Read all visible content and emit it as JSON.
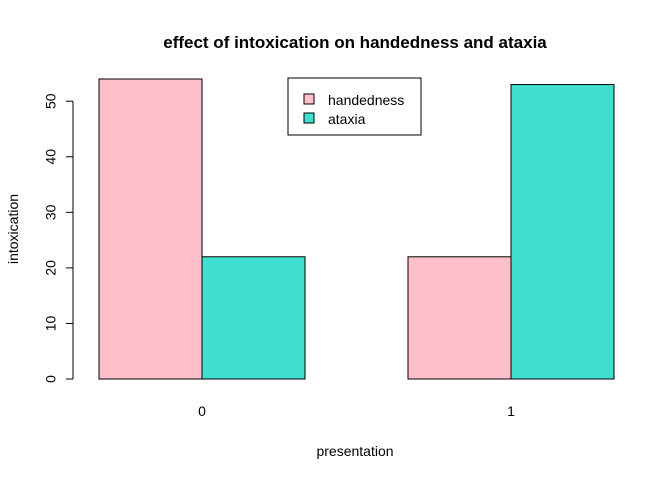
{
  "chart_data": {
    "type": "bar",
    "title": "effect of intoxication on handedness and ataxia",
    "xlabel": "presentation",
    "ylabel": "intoxication",
    "categories": [
      "0",
      "1"
    ],
    "series": [
      {
        "name": "handedness",
        "color": "#ffc0cb",
        "values": [
          54,
          22
        ]
      },
      {
        "name": "ataxia",
        "color": "#40e0d0",
        "values": [
          22,
          53
        ]
      }
    ],
    "ylim": [
      0,
      54
    ],
    "yticks": [
      0,
      10,
      20,
      30,
      40,
      50
    ],
    "grid": false,
    "legend_position": "top-center",
    "bar_mode": "grouped"
  }
}
